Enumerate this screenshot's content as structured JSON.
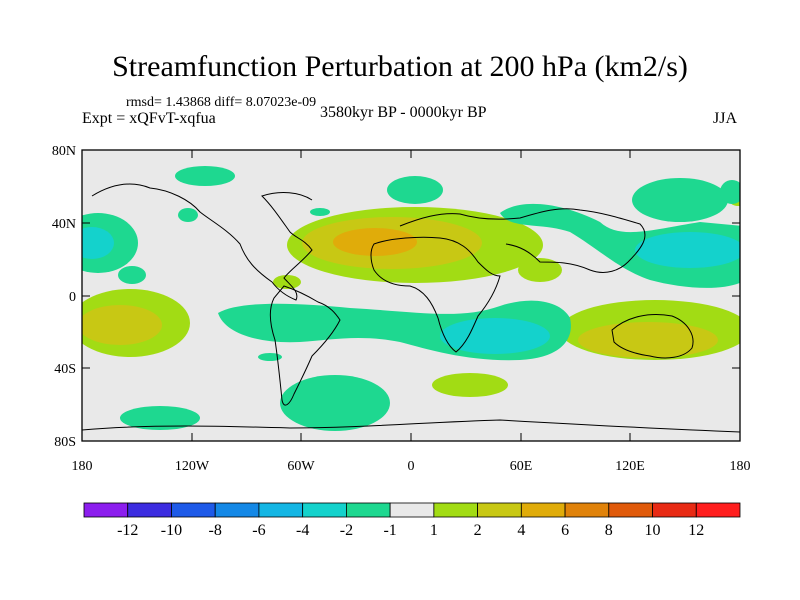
{
  "header": {
    "title": "Streamfunction Perturbation at 200 hPa (km2/s)",
    "stats": "rmsd= 1.43868 diff= 8.07023e-09",
    "experiment": "Expt = xQFvT-xqfua",
    "period": "3580kyr BP - 0000kyr BP",
    "season": "JJA"
  },
  "axes": {
    "y_labels": [
      "80N",
      "40N",
      "0",
      "40S",
      "80S"
    ],
    "x_labels": [
      "180",
      "120W",
      "60W",
      "0",
      "60E",
      "120E",
      "180"
    ]
  },
  "colorbar": {
    "labels": [
      "-12",
      "-10",
      "-8",
      "-6",
      "-4",
      "-2",
      "-1",
      "1",
      "2",
      "4",
      "6",
      "8",
      "10",
      "12"
    ],
    "colors": [
      "#8c1eee",
      "#3c2ce0",
      "#1e5ae8",
      "#1488e6",
      "#14b6e4",
      "#14d2cc",
      "#1ed890",
      "#e9e9e9",
      "#a2dc14",
      "#c8c814",
      "#e0ac0a",
      "#e0820a",
      "#e05a0a",
      "#e82a14",
      "#ff1e1e"
    ]
  },
  "colors": {
    "background": "#e9e9e9",
    "neg_1": "#1ed890",
    "neg_2": "#14d2cc",
    "pos_1": "#a2dc14",
    "pos_2": "#c8c814",
    "pos_3": "#e0ac0a"
  }
}
